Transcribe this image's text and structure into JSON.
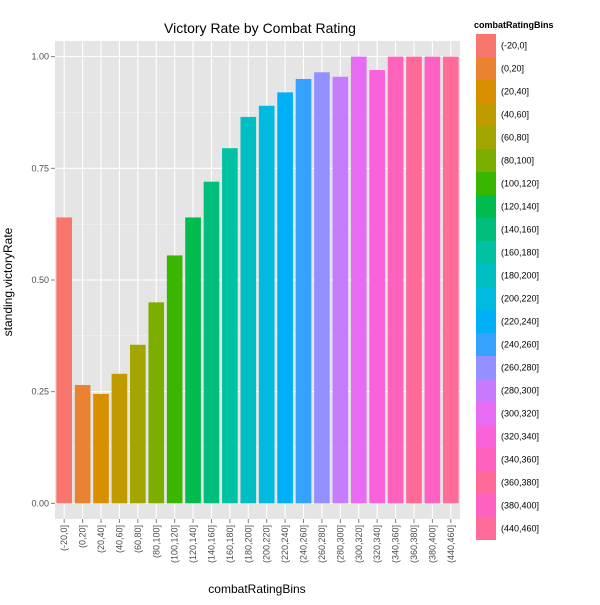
{
  "chart_data": {
    "type": "bar",
    "title": "Victory Rate by Combat Rating",
    "xlabel": "combatRatingBins",
    "ylabel": "standing.victoryRate",
    "ylim": [
      -0.035,
      1.035
    ],
    "yticks": [
      0.0,
      0.25,
      0.5,
      0.75,
      1.0
    ],
    "ytick_labels": [
      "0.00",
      "0.25",
      "0.50",
      "0.75",
      "1.00"
    ],
    "grid": true,
    "legend": {
      "title": "combatRatingBins",
      "position": "right"
    },
    "categories": [
      "(-20,0]",
      "(0,20]",
      "(20,40]",
      "(40,60]",
      "(60,80]",
      "(80,100]",
      "(100,120]",
      "(120,140]",
      "(140,160]",
      "(160,180]",
      "(180,200]",
      "(200,220]",
      "(220,240]",
      "(240,260]",
      "(260,280]",
      "(280,300]",
      "(300,320]",
      "(320,340]",
      "(340,360]",
      "(360,380]",
      "(380,400]",
      "(440,460]"
    ],
    "values": [
      0.64,
      0.265,
      0.245,
      0.29,
      0.355,
      0.45,
      0.555,
      0.64,
      0.72,
      0.795,
      0.865,
      0.89,
      0.92,
      0.95,
      0.965,
      0.955,
      1.0,
      0.97,
      1.0,
      1.0,
      1.0,
      1.0
    ],
    "colors": [
      "#F8766D",
      "#EA8331",
      "#D89000",
      "#C09B00",
      "#A3A500",
      "#7CAE00",
      "#39B600",
      "#00BB4E",
      "#00BF7D",
      "#00C1A3",
      "#00BFC4",
      "#00BAE0",
      "#00B0F6",
      "#35A2FF",
      "#9590FF",
      "#C77CFF",
      "#E76BF3",
      "#FA62DB",
      "#FF62BC",
      "#FF6A98",
      "#FF61C3",
      "#FF6C9A"
    ],
    "panel_background": "#E5E5E5",
    "grid_color": "#FFFFFF"
  }
}
